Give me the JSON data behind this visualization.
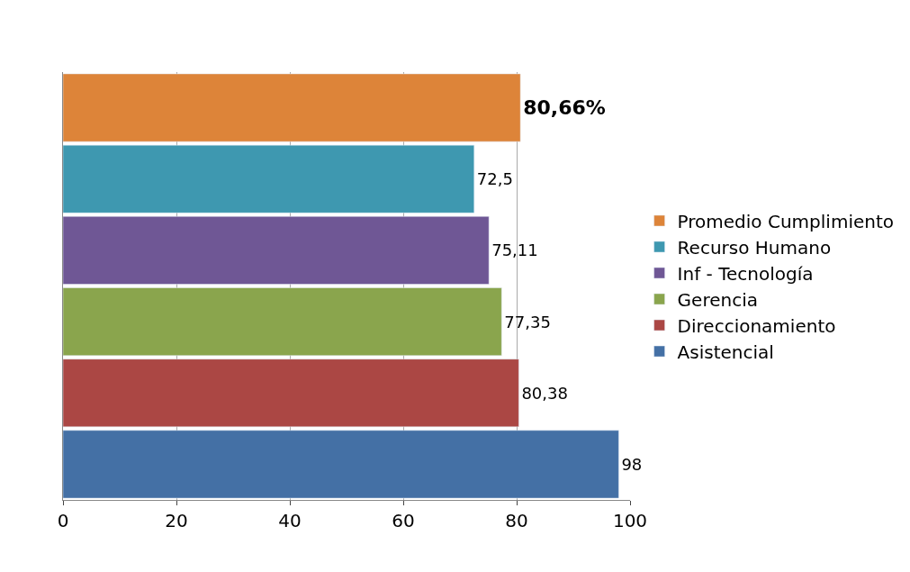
{
  "chart_data": {
    "type": "bar",
    "orientation": "horizontal",
    "categories": [
      null,
      null,
      null,
      null,
      null,
      null
    ],
    "series": [
      {
        "name": "Promedio Cumplimiento",
        "color": "#dd8439",
        "values": [
          80.66,
          null,
          null,
          null,
          null,
          null
        ],
        "value_labels": [
          "80,66%",
          null,
          null,
          null,
          null,
          null
        ]
      },
      {
        "name": "Recurso Humano",
        "color": "#3e98b0",
        "values": [
          null,
          72.5,
          null,
          null,
          null,
          null
        ],
        "value_labels": [
          null,
          "72,5",
          null,
          null,
          null,
          null
        ]
      },
      {
        "name": "Inf - Tecnología",
        "color": "#6f5795",
        "values": [
          null,
          null,
          75.11,
          null,
          null,
          null
        ],
        "value_labels": [
          null,
          null,
          "75,11",
          null,
          null,
          null
        ]
      },
      {
        "name": "Gerencia",
        "color": "#8aa54d",
        "values": [
          null,
          null,
          null,
          77.35,
          null,
          null
        ],
        "value_labels": [
          null,
          null,
          null,
          "77,35",
          null,
          null
        ]
      },
      {
        "name": "Direccionamiento",
        "color": "#ab4744",
        "values": [
          null,
          null,
          null,
          null,
          80.38,
          null
        ],
        "value_labels": [
          null,
          null,
          null,
          null,
          "80,38",
          null
        ]
      },
      {
        "name": "Asistencial",
        "color": "#4470a5",
        "values": [
          null,
          null,
          null,
          null,
          null,
          98
        ],
        "value_labels": [
          null,
          null,
          null,
          null,
          null,
          "98"
        ]
      }
    ],
    "xlim": [
      0,
      100
    ],
    "xticks": [
      0,
      20,
      40,
      60,
      80,
      100
    ],
    "grid": "x",
    "legend": "right",
    "tick_labels": "x"
  }
}
